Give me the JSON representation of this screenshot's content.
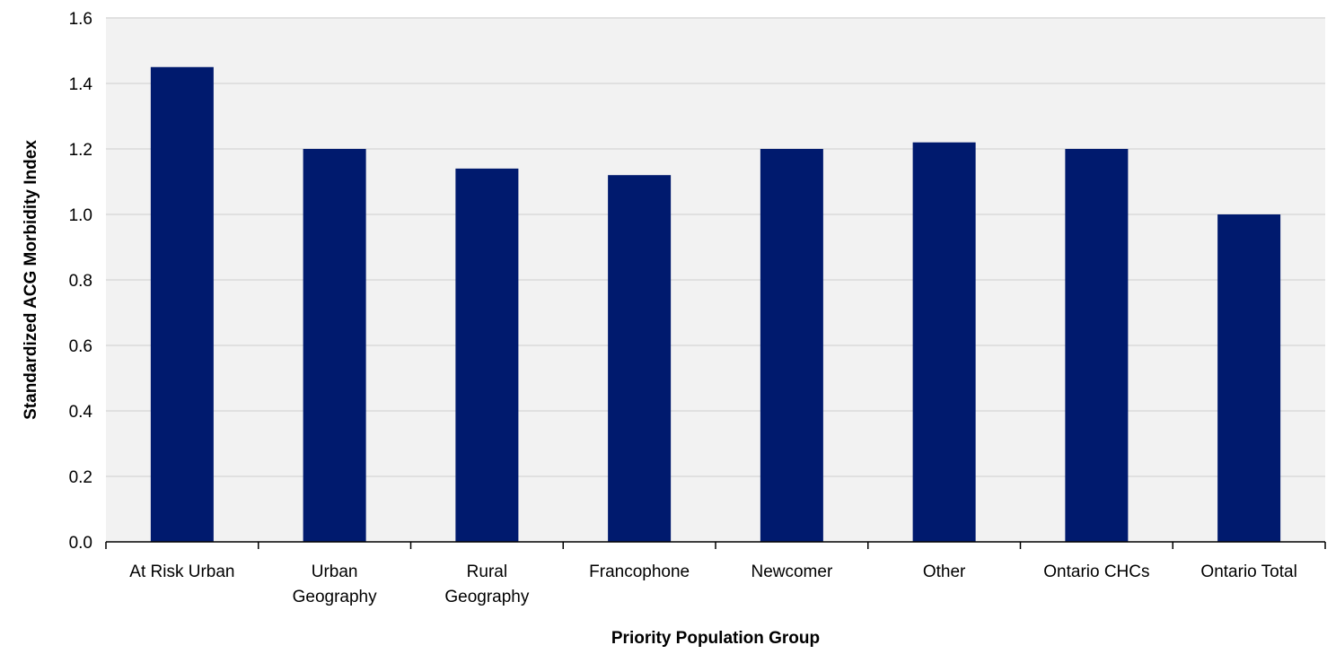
{
  "chart_data": {
    "type": "bar",
    "title": "",
    "xlabel": "Priority Population Group",
    "ylabel": "Standardized ACG Morbidity Index",
    "categories": [
      [
        "At Risk Urban"
      ],
      [
        "Urban",
        "Geography"
      ],
      [
        "Rural",
        "Geography"
      ],
      [
        "Francophone"
      ],
      [
        "Newcomer"
      ],
      [
        "Other"
      ],
      [
        "Ontario CHCs"
      ],
      [
        "Ontario Total"
      ]
    ],
    "values": [
      1.45,
      1.2,
      1.14,
      1.12,
      1.2,
      1.22,
      1.2,
      1.0
    ],
    "ylim": [
      0,
      1.6
    ],
    "yticks": [
      "0.0",
      "0.2",
      "0.4",
      "0.6",
      "0.8",
      "1.0",
      "1.2",
      "1.4",
      "1.6"
    ],
    "grid": true,
    "legend": "none",
    "colors": {
      "bar": "#001a6e",
      "plot_background": "#f2f2f2",
      "gridline": "#d9d9d9",
      "axis": "#000000"
    }
  }
}
